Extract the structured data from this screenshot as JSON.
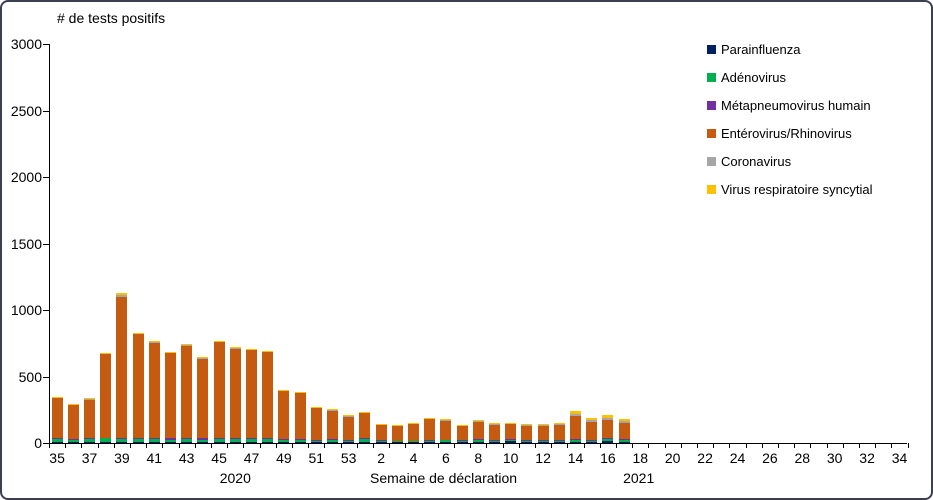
{
  "chart_data": {
    "type": "bar",
    "variant": "stacked-vertical",
    "title": "# de tests positifs",
    "ylabel": "# de tests positifs",
    "xlabel": "Semaine de déclaration",
    "ylim": [
      0,
      3000
    ],
    "ytick_step": 500,
    "ytick_labels": [
      "0",
      "500",
      "1000",
      "1500",
      "2000",
      "2500",
      "3000"
    ],
    "grid": "off",
    "legend_position": "right",
    "categories": [
      "35",
      "36",
      "37",
      "38",
      "39",
      "40",
      "41",
      "42",
      "43",
      "44",
      "45",
      "46",
      "47",
      "48",
      "49",
      "50",
      "51",
      "52",
      "53",
      "1",
      "2",
      "3",
      "4",
      "5",
      "6",
      "7",
      "8",
      "9",
      "10",
      "11",
      "12",
      "13",
      "14",
      "15",
      "16",
      "17",
      "18",
      "19",
      "20",
      "21",
      "22",
      "23",
      "24",
      "25",
      "26",
      "27",
      "28",
      "29",
      "30",
      "31",
      "32",
      "33",
      "34"
    ],
    "xtick_labels_shown": [
      "35",
      "37",
      "39",
      "41",
      "43",
      "45",
      "47",
      "49",
      "51",
      "53",
      "2",
      "4",
      "6",
      "8",
      "10",
      "12",
      "14",
      "16",
      "18",
      "20",
      "22",
      "24",
      "26",
      "28",
      "30",
      "32",
      "34"
    ],
    "year_labels": [
      {
        "text": "2020",
        "week_index": 11.5
      },
      {
        "text": "2021",
        "week_index": 36.4
      }
    ],
    "series": [
      {
        "name": "Parainfluenza",
        "color": "#002060",
        "values": [
          8,
          6,
          8,
          6,
          6,
          6,
          8,
          6,
          6,
          6,
          6,
          6,
          8,
          6,
          6,
          6,
          5,
          5,
          5,
          5,
          4,
          4,
          4,
          5,
          5,
          4,
          10,
          5,
          12,
          8,
          6,
          6,
          8,
          6,
          18,
          8,
          0,
          0,
          0,
          0,
          0,
          0,
          0,
          0,
          0,
          0,
          0,
          0,
          0,
          0,
          0,
          0,
          0
        ]
      },
      {
        "name": "Adénovirus",
        "color": "#00B050",
        "values": [
          22,
          20,
          22,
          30,
          26,
          22,
          24,
          20,
          25,
          20,
          22,
          25,
          22,
          22,
          20,
          18,
          15,
          18,
          15,
          25,
          12,
          10,
          10,
          15,
          18,
          14,
          16,
          12,
          12,
          12,
          12,
          14,
          18,
          14,
          14,
          16,
          0,
          0,
          0,
          0,
          0,
          0,
          0,
          0,
          0,
          0,
          0,
          0,
          0,
          0,
          0,
          0,
          0
        ]
      },
      {
        "name": "Métapneumovirus humain",
        "color": "#7030A0",
        "values": [
          4,
          4,
          5,
          5,
          5,
          7,
          8,
          8,
          8,
          8,
          10,
          8,
          8,
          8,
          6,
          6,
          5,
          5,
          4,
          4,
          3,
          3,
          3,
          3,
          3,
          3,
          3,
          3,
          3,
          3,
          3,
          3,
          3,
          3,
          3,
          3,
          0,
          0,
          0,
          0,
          0,
          0,
          0,
          0,
          0,
          0,
          0,
          0,
          0,
          0,
          0,
          0,
          0
        ]
      },
      {
        "name": "Entérovirus/Rhinovirus",
        "color": "#C55A11",
        "values": [
          305,
          255,
          292,
          630,
          1060,
          785,
          715,
          642,
          695,
          601,
          720,
          670,
          660,
          647,
          360,
          348,
          240,
          217,
          176,
          190,
          117,
          114,
          128,
          157,
          144,
          105,
          134,
          118,
          116,
          110,
          112,
          115,
          176,
          137,
          140,
          123,
          0,
          0,
          0,
          0,
          0,
          0,
          0,
          0,
          0,
          0,
          0,
          0,
          0,
          0,
          0,
          0,
          0
        ]
      },
      {
        "name": "Coronavirus",
        "color": "#A6A6A6",
        "values": [
          2,
          2,
          3,
          3,
          18,
          4,
          4,
          4,
          4,
          4,
          5,
          4,
          5,
          5,
          3,
          3,
          2,
          2,
          2,
          3,
          2,
          2,
          3,
          3,
          3,
          2,
          4,
          4,
          4,
          4,
          4,
          4,
          15,
          12,
          13,
          12,
          0,
          0,
          0,
          0,
          0,
          0,
          0,
          0,
          0,
          0,
          0,
          0,
          0,
          0,
          0,
          0,
          0
        ]
      },
      {
        "name": "Virus respiratoire syncytial",
        "color": "#FFC000",
        "values": [
          4,
          3,
          5,
          6,
          15,
          6,
          6,
          5,
          7,
          6,
          7,
          7,
          7,
          7,
          5,
          4,
          3,
          3,
          3,
          3,
          2,
          2,
          2,
          2,
          2,
          2,
          3,
          3,
          3,
          3,
          3,
          3,
          20,
          18,
          22,
          18,
          0,
          0,
          0,
          0,
          0,
          0,
          0,
          0,
          0,
          0,
          0,
          0,
          0,
          0,
          0,
          0,
          0
        ]
      }
    ]
  }
}
